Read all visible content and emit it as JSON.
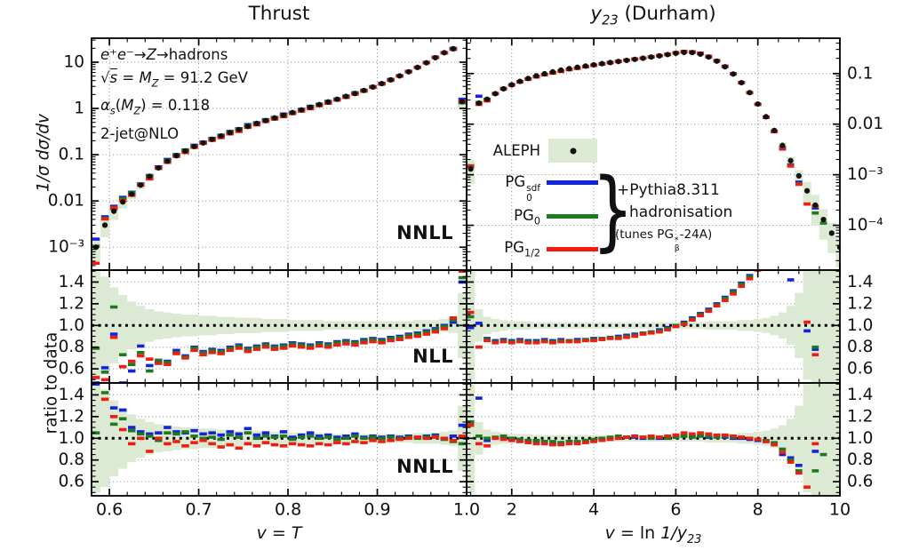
{
  "titles": {
    "left": "Thrust",
    "right_y": "y",
    "right_sub": "23",
    "right_rest": " (Durham)"
  },
  "axis_labels": {
    "y_top": "1/σ dσ/dv",
    "y_ratio": "ratio to data",
    "x_left_v": "v",
    "x_left_eq": " = ",
    "x_left_T": "T",
    "x_right_v": "v",
    "x_right_eq": " = ln ",
    "x_right_frac": "1/y",
    "x_right_sub": "23"
  },
  "ann": {
    "l1a": "e⁺e⁻",
    "l1b": "→",
    "l1c": "Z",
    "l1d": "→hadrons",
    "l2a": "√",
    "l2b": "s",
    "l2c": " = ",
    "l2d": "M",
    "l2e": "Z",
    "l2f": " = 91.2 GeV",
    "l3a": "α",
    "l3b": "s",
    "l3c": "(",
    "l3d": "M",
    "l3e": "Z",
    "l3f": ") = 0.118",
    "l4": "2-jet@NLO"
  },
  "panel_labels": {
    "top": "NNLL",
    "mid": "NLL",
    "bot": "NNLL"
  },
  "legend": {
    "aleph": "ALEPH",
    "pg1a": "PG",
    "pg1sup": "sdf",
    "pg1sub": "0",
    "pg2a": "PG",
    "pg2sub": "0",
    "pg3a": "PG",
    "pg3sub": "1/2",
    "brace": "}",
    "note1": "+Pythia8.311",
    "note2": "hadronisation",
    "note3a": "(tunes PG",
    "note3sup": "*",
    "note3sub": "β",
    "note3b": "-24A)"
  },
  "chart_data": {
    "type": "bar",
    "subtype": "histogram-comparison-grid",
    "series_order": [
      "pg0sdf",
      "pg0",
      "pg12"
    ],
    "series_colors": {
      "pg0sdf": "#1323dd",
      "pg0": "#1e7a1e",
      "pg12": "#ee1d10"
    },
    "data_color": "#111111",
    "band_color": "#dce9d3",
    "ratio_axis": {
      "range": [
        0.47,
        1.51
      ],
      "minor": 0.05,
      "ticks": [
        [
          0.6,
          "0.6"
        ],
        [
          0.8,
          "0.8"
        ],
        [
          1.0,
          "1.0"
        ],
        [
          1.2,
          "1.2"
        ],
        [
          1.4,
          "1.4"
        ]
      ]
    },
    "rows": [
      {
        "id": "main",
        "kind": "dist",
        "ratio_key": "nnll",
        "label": "NNLL"
      },
      {
        "id": "nll",
        "kind": "ratio",
        "ratio_key": "nll",
        "label": "NLL"
      },
      {
        "id": "nnll",
        "kind": "ratio",
        "ratio_key": "nnll",
        "label": "NNLL"
      }
    ],
    "columns": [
      {
        "id": "thrust",
        "title": "Thrust",
        "x_label": "v = T",
        "x": {
          "range": [
            0.58,
            1.0
          ],
          "minor": 0.02,
          "majors": [
            [
              0.6,
              "0.6"
            ],
            [
              0.7,
              "0.7"
            ],
            [
              0.8,
              "0.8"
            ],
            [
              0.9,
              "0.9"
            ],
            [
              1.0,
              "1.0"
            ]
          ]
        },
        "y_main": {
          "range": [
            0.00032,
            33
          ],
          "ticks": [
            [
              10,
              "10"
            ],
            [
              1,
              "1"
            ],
            [
              0.1,
              "0.1"
            ],
            [
              0.01,
              "0.01"
            ],
            [
              0.001,
              "10⁻³"
            ]
          ]
        },
        "bins": {
          "start": 0.58,
          "width": 0.01,
          "count": 42
        },
        "data": [
          0.001,
          0.003,
          0.006,
          0.0095,
          0.014,
          0.022,
          0.034,
          0.052,
          0.072,
          0.095,
          0.12,
          0.15,
          0.18,
          0.215,
          0.255,
          0.3,
          0.35,
          0.41,
          0.475,
          0.545,
          0.625,
          0.715,
          0.815,
          0.93,
          1.06,
          1.21,
          1.38,
          1.58,
          1.82,
          2.1,
          2.45,
          2.9,
          3.45,
          4.15,
          5.05,
          6.2,
          7.7,
          9.7,
          12.5,
          16.0,
          19.5,
          1.4
        ],
        "band_rel": [
          0.5,
          0.45,
          0.35,
          0.28,
          0.22,
          0.18,
          0.15,
          0.13,
          0.12,
          0.11,
          0.1,
          0.1,
          0.09,
          0.09,
          0.08,
          0.08,
          0.07,
          0.07,
          0.07,
          0.06,
          0.06,
          0.06,
          0.05,
          0.05,
          0.05,
          0.05,
          0.04,
          0.04,
          0.04,
          0.04,
          0.04,
          0.04,
          0.04,
          0.04,
          0.04,
          0.04,
          0.05,
          0.05,
          0.05,
          0.06,
          0.07,
          0.3
        ],
        "ratios": {
          "nll": {
            "pg0sdf": [
              0.47,
              0.61,
              0.92,
              0.47,
              0.58,
              0.81,
              0.63,
              0.66,
              0.67,
              0.77,
              0.72,
              0.8,
              0.76,
              0.78,
              0.77,
              0.8,
              0.82,
              0.79,
              0.81,
              0.83,
              0.81,
              0.82,
              0.84,
              0.83,
              0.82,
              0.84,
              0.83,
              0.85,
              0.86,
              0.85,
              0.87,
              0.88,
              0.87,
              0.89,
              0.9,
              0.92,
              0.93,
              0.95,
              0.97,
              1.0,
              1.03,
              1.4
            ],
            "pg0": [
              0.79,
              0.57,
              1.17,
              0.73,
              0.64,
              0.75,
              0.58,
              0.68,
              0.66,
              0.75,
              0.71,
              0.79,
              0.75,
              0.77,
              0.76,
              0.79,
              0.81,
              0.78,
              0.8,
              0.82,
              0.8,
              0.81,
              0.83,
              0.82,
              0.81,
              0.83,
              0.82,
              0.84,
              0.85,
              0.84,
              0.86,
              0.87,
              0.86,
              0.88,
              0.89,
              0.91,
              0.92,
              0.94,
              0.96,
              0.99,
              1.05,
              1.44
            ],
            "pg12": [
              0.52,
              0.5,
              0.89,
              0.62,
              0.67,
              0.72,
              0.69,
              0.65,
              0.64,
              0.74,
              0.7,
              0.77,
              0.73,
              0.75,
              0.74,
              0.77,
              0.79,
              0.76,
              0.78,
              0.8,
              0.78,
              0.79,
              0.81,
              0.8,
              0.79,
              0.81,
              0.8,
              0.82,
              0.83,
              0.82,
              0.84,
              0.85,
              0.84,
              0.86,
              0.87,
              0.89,
              0.9,
              0.92,
              0.94,
              0.97,
              1.07,
              1.5
            ]
          },
          "nnll": {
            "pg0sdf": [
              1.5,
              1.52,
              1.28,
              1.26,
              1.1,
              1.06,
              1.04,
              1.05,
              1.1,
              1.06,
              1.05,
              1.07,
              1.04,
              1.05,
              1.03,
              1.06,
              1.04,
              1.09,
              1.03,
              1.05,
              1.02,
              1.06,
              1.01,
              1.03,
              1.05,
              1.02,
              1.03,
              1.01,
              1.02,
              1.04,
              1.01,
              1.02,
              1.01,
              1.02,
              1.01,
              1.02,
              1.01,
              1.02,
              1.03,
              1.0,
              1.02,
              1.12
            ],
            "pg0": [
              1.05,
              1.42,
              1.13,
              1.18,
              1.07,
              1.04,
              1.02,
              0.98,
              1.05,
              1.04,
              1.06,
              1.02,
              1.0,
              1.01,
              0.99,
              1.03,
              1.01,
              1.05,
              1.0,
              1.02,
              1.01,
              1.02,
              0.99,
              1.01,
              1.02,
              1.0,
              1.01,
              0.99,
              1.0,
              1.02,
              1.0,
              1.01,
              1.0,
              1.01,
              1.0,
              1.01,
              1.0,
              1.01,
              1.02,
              0.99,
              0.97,
              0.95
            ],
            "pg12": [
              0.45,
              1.36,
              1.2,
              1.08,
              0.95,
              1.0,
              0.88,
              1.0,
              0.95,
              0.97,
              0.93,
              0.96,
              0.98,
              0.95,
              0.92,
              0.94,
              0.91,
              0.95,
              0.93,
              0.96,
              0.94,
              0.93,
              0.95,
              0.94,
              0.93,
              0.95,
              0.94,
              0.96,
              0.95,
              0.97,
              0.96,
              0.98,
              0.97,
              0.98,
              0.99,
              1.0,
              1.01,
              1.0,
              1.01,
              1.0,
              0.98,
              1.02
            ]
          }
        }
      },
      {
        "id": "y23",
        "title": "y23 (Durham)",
        "x_label": "v = ln 1/y23",
        "x": {
          "range": [
            0.9,
            10.0
          ],
          "minor": 0.5,
          "majors": [
            [
              2,
              "2"
            ],
            [
              4,
              "4"
            ],
            [
              6,
              "6"
            ],
            [
              8,
              "8"
            ],
            [
              10,
              "10"
            ]
          ]
        },
        "y_main": {
          "range": [
            1.3e-05,
            0.5
          ],
          "ticks": [
            [
              0.1,
              "0.1"
            ],
            [
              0.01,
              "0.01"
            ],
            [
              0.001,
              "10⁻³"
            ],
            [
              0.0001,
              "10⁻⁴"
            ]
          ]
        },
        "bins": {
          "start": 0.9,
          "width": 0.2,
          "count": 46
        },
        "data": [
          0.0013,
          0.026,
          0.031,
          0.04,
          0.05,
          0.06,
          0.07,
          0.08,
          0.09,
          0.099,
          0.108,
          0.117,
          0.125,
          0.133,
          0.141,
          0.149,
          0.157,
          0.165,
          0.173,
          0.182,
          0.191,
          0.201,
          0.212,
          0.224,
          0.237,
          0.252,
          0.262,
          0.26,
          0.242,
          0.212,
          0.176,
          0.136,
          0.098,
          0.066,
          0.042,
          0.025,
          0.014,
          0.0075,
          0.0038,
          0.0019,
          0.00095,
          0.00048,
          0.00025,
          0.00013,
          7e-05,
          3.7e-05
        ],
        "band_rel": [
          0.5,
          0.15,
          0.08,
          0.06,
          0.05,
          0.04,
          0.04,
          0.04,
          0.03,
          0.03,
          0.03,
          0.03,
          0.03,
          0.03,
          0.03,
          0.03,
          0.03,
          0.03,
          0.03,
          0.03,
          0.03,
          0.03,
          0.03,
          0.03,
          0.03,
          0.03,
          0.03,
          0.03,
          0.03,
          0.04,
          0.04,
          0.04,
          0.04,
          0.05,
          0.05,
          0.06,
          0.07,
          0.09,
          0.12,
          0.18,
          0.3,
          0.5,
          0.6,
          0.6,
          0.6,
          0.6
        ],
        "ratios": {
          "nll": {
            "pg0sdf": [
              0.98,
              1.02,
              0.88,
              0.86,
              0.87,
              0.86,
              0.87,
              0.86,
              0.86,
              0.87,
              0.86,
              0.87,
              0.86,
              0.87,
              0.87,
              0.88,
              0.88,
              0.89,
              0.9,
              0.91,
              0.92,
              0.93,
              0.94,
              0.96,
              0.98,
              1.0,
              1.03,
              1.07,
              1.11,
              1.15,
              1.2,
              1.26,
              1.32,
              1.39,
              1.46,
              1.55,
              1.65,
              1.78,
              1.9,
              1.42,
              1.95,
              0.95,
              0.78,
              null,
              null,
              null
            ],
            "pg0": [
              1.08,
              0.8,
              0.87,
              0.85,
              0.86,
              0.85,
              0.86,
              0.85,
              0.85,
              0.86,
              0.85,
              0.86,
              0.86,
              0.86,
              0.87,
              0.87,
              0.88,
              0.89,
              0.89,
              0.9,
              0.91,
              0.93,
              0.94,
              0.95,
              0.97,
              1.0,
              1.02,
              1.06,
              1.1,
              1.14,
              1.19,
              1.25,
              1.31,
              1.38,
              1.45,
              1.53,
              1.63,
              1.75,
              1.88,
              1.95,
              1.95,
              1.9,
              0.8,
              null,
              null,
              null
            ],
            "pg12": [
              1.12,
              0.8,
              0.86,
              0.84,
              0.85,
              0.84,
              0.85,
              0.84,
              0.84,
              0.85,
              0.84,
              0.85,
              0.85,
              0.85,
              0.86,
              0.86,
              0.87,
              0.88,
              0.88,
              0.89,
              0.9,
              0.92,
              0.93,
              0.94,
              0.96,
              0.99,
              1.01,
              1.05,
              1.09,
              1.13,
              1.18,
              1.23,
              1.29,
              1.36,
              1.43,
              1.51,
              1.61,
              1.72,
              1.85,
              1.95,
              1.95,
              1.03,
              0.73,
              null,
              null,
              null
            ]
          },
          "nnll": {
            "pg0sdf": [
              1.15,
              1.37,
              0.98,
              1.0,
              1.01,
              1.0,
              0.99,
              0.98,
              0.97,
              0.97,
              0.96,
              0.96,
              0.97,
              0.96,
              0.97,
              0.98,
              0.99,
              1.0,
              1.0,
              1.01,
              1.01,
              1.0,
              1.01,
              1.0,
              1.01,
              1.01,
              1.02,
              1.02,
              1.02,
              1.01,
              1.02,
              1.01,
              1.0,
              1.0,
              0.99,
              0.98,
              0.97,
              0.95,
              0.85,
              0.82,
              0.75,
              null,
              0.88,
              null,
              null,
              null
            ],
            "pg0": [
              1.15,
              1.02,
              1.0,
              1.01,
              1.02,
              1.0,
              0.99,
              0.98,
              0.98,
              0.97,
              0.97,
              0.96,
              0.97,
              0.97,
              0.98,
              0.99,
              1.0,
              1.01,
              1.02,
              1.01,
              1.02,
              1.01,
              1.0,
              1.01,
              1.0,
              1.01,
              1.02,
              1.01,
              1.02,
              1.02,
              1.01,
              1.02,
              1.01,
              1.01,
              1.0,
              0.99,
              0.98,
              0.96,
              0.9,
              0.8,
              0.7,
              null,
              0.7,
              0.85,
              null,
              null
            ],
            "pg12": [
              1.12,
              0.95,
              0.93,
              1.0,
              0.99,
              0.98,
              0.97,
              0.96,
              0.95,
              0.95,
              0.94,
              0.94,
              0.95,
              0.95,
              0.96,
              0.97,
              0.98,
              0.99,
              1.0,
              1.01,
              1.02,
              1.01,
              1.02,
              1.01,
              1.02,
              1.03,
              1.05,
              1.04,
              1.05,
              1.04,
              1.03,
              1.03,
              1.02,
              1.01,
              1.0,
              0.99,
              0.97,
              0.94,
              0.87,
              0.78,
              0.68,
              0.55,
              0.95,
              null,
              null,
              null
            ]
          }
        }
      }
    ]
  }
}
